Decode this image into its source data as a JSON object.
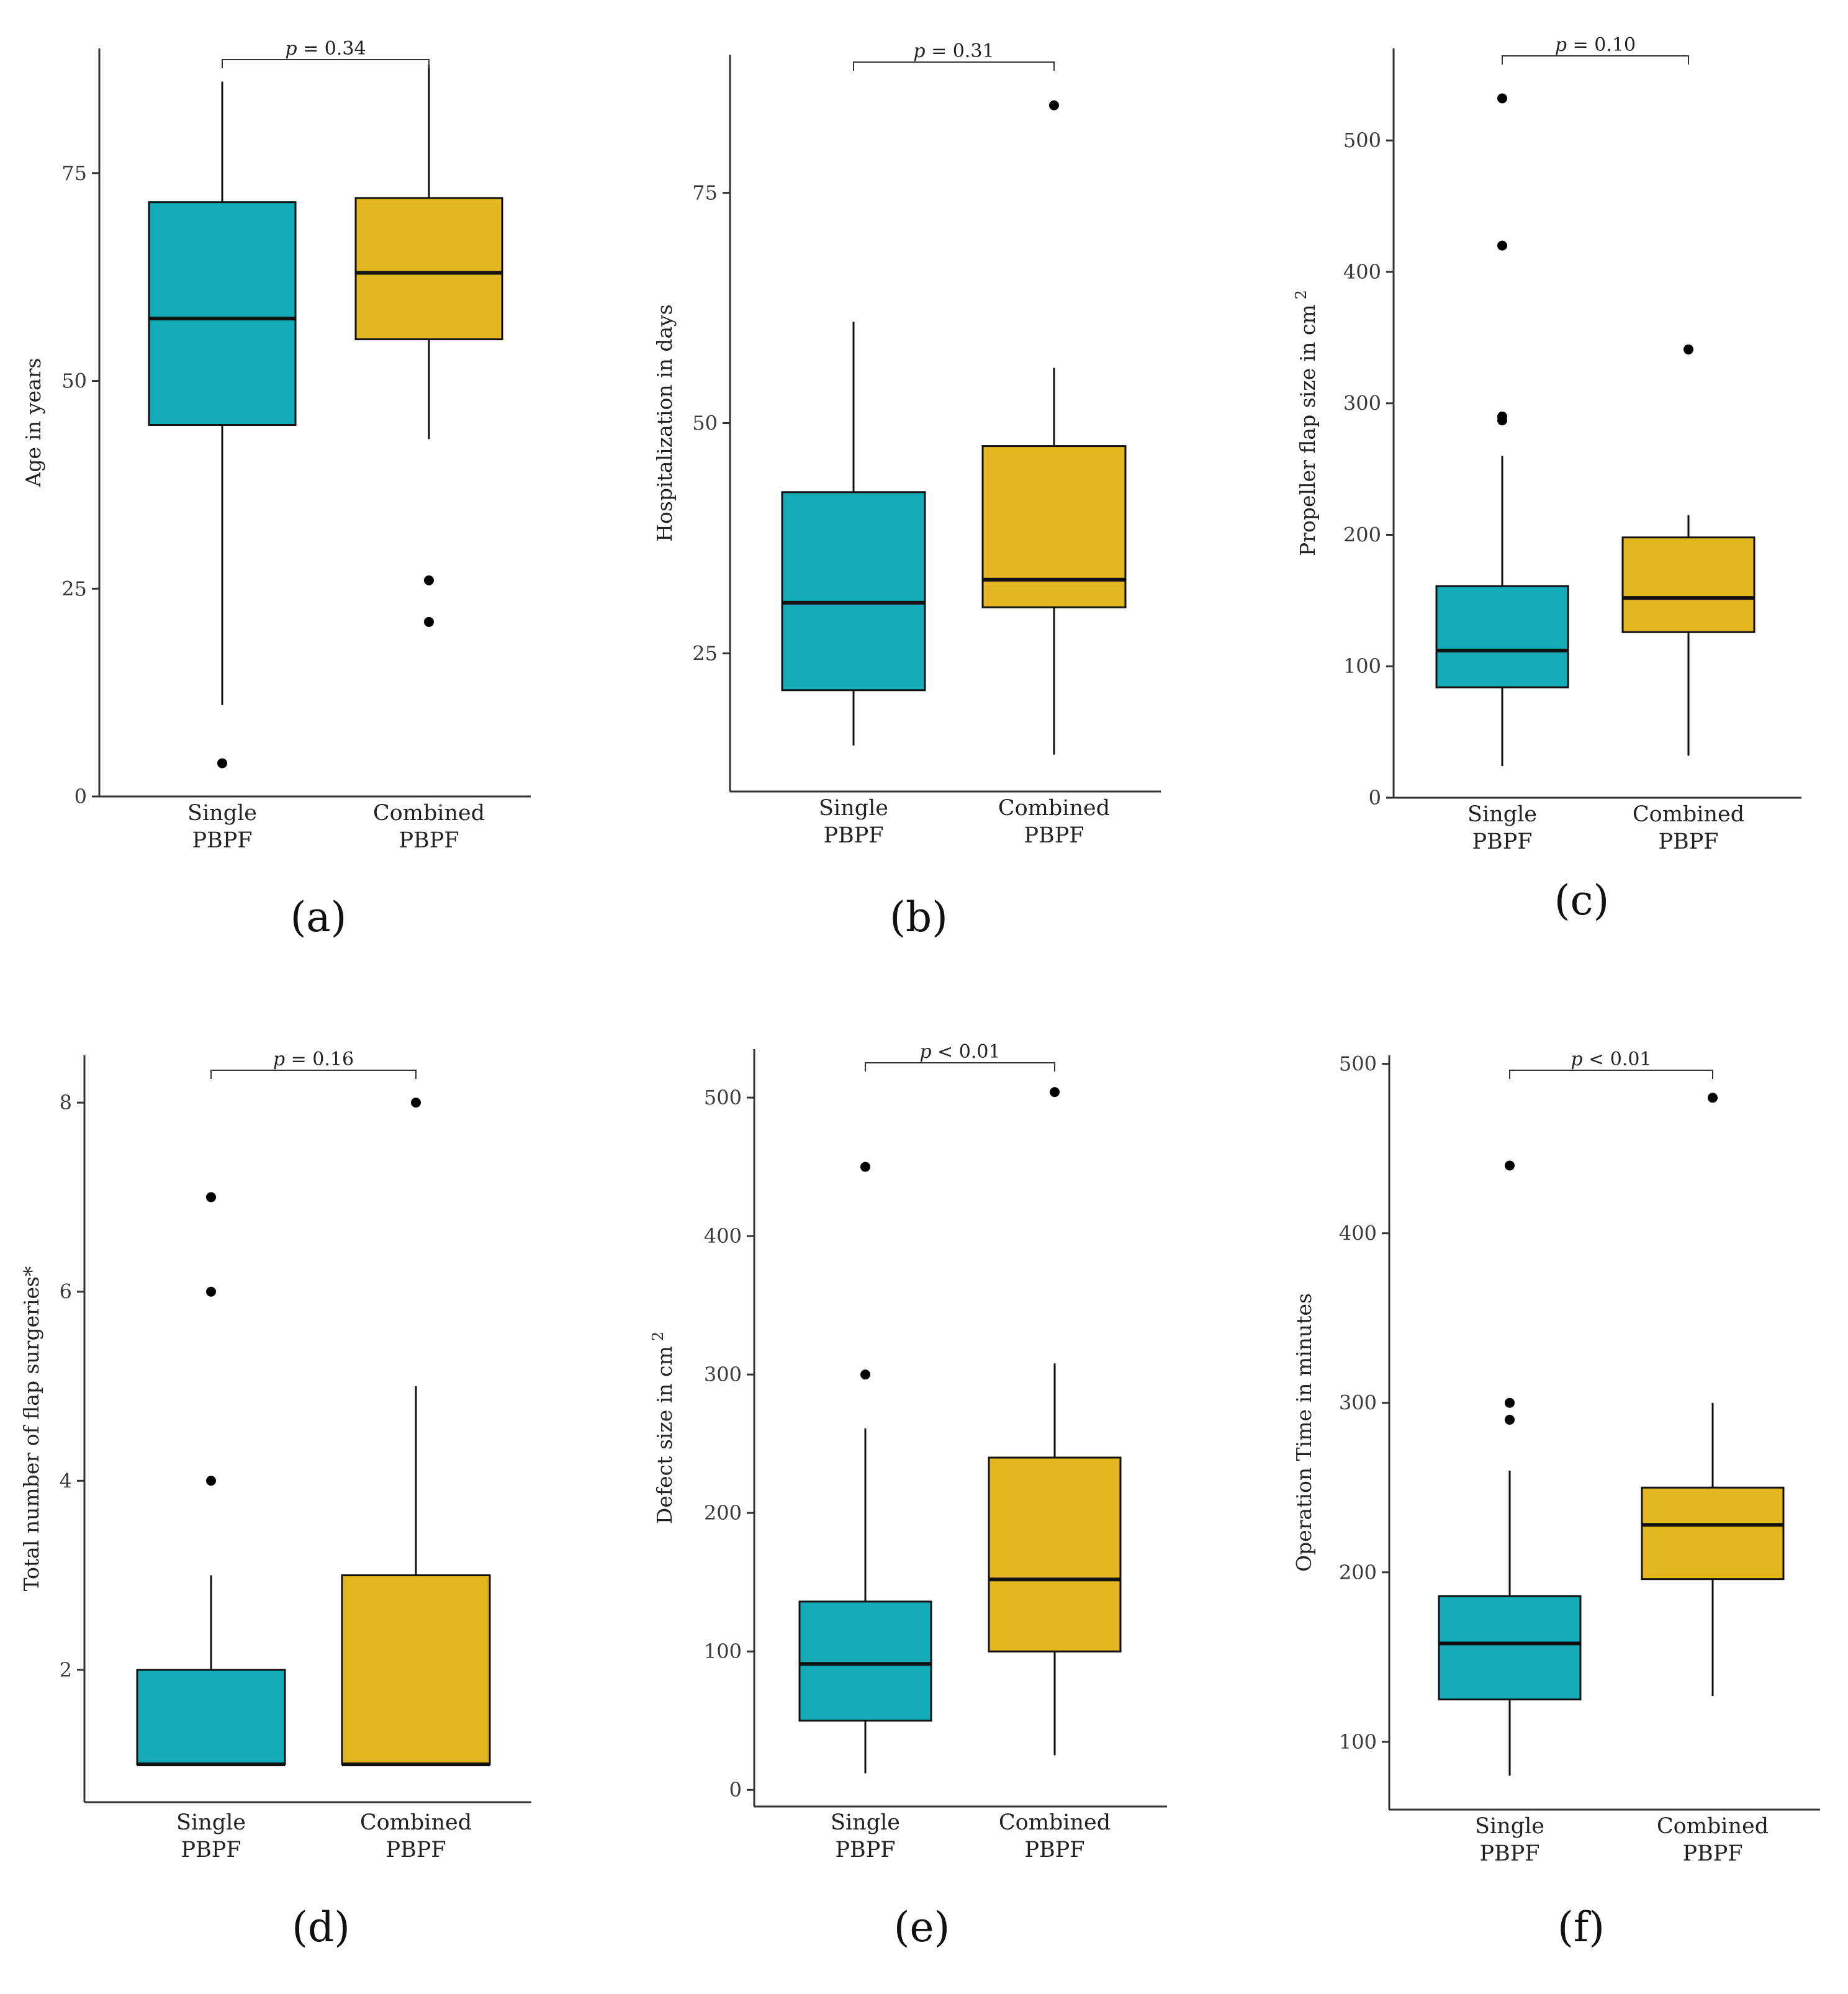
{
  "colors": {
    "single": "#13acb8",
    "combined": "#e3b620",
    "axis": "#333333"
  },
  "chart_data": [
    {
      "type": "boxplot",
      "panel_label": "(a)",
      "ylabel": "Age in years",
      "ylabel_sup": "",
      "ylim": [
        0,
        90
      ],
      "yticks": [
        0,
        25,
        50,
        75
      ],
      "p_label": "p = 0.34",
      "categories": [
        {
          "line1": "Single",
          "line2": "PBPF",
          "q1": 44.7,
          "median": 57.5,
          "q3": 71.5,
          "whisker_low": 11,
          "whisker_high": 86,
          "outliers": [
            4
          ],
          "color": "single"
        },
        {
          "line1": "Combined",
          "line2": "PBPF",
          "q1": 55,
          "median": 63,
          "q3": 72,
          "whisker_low": 43,
          "whisker_high": 88,
          "outliers": [
            26,
            21
          ],
          "color": "combined"
        }
      ]
    },
    {
      "type": "boxplot",
      "panel_label": "(b)",
      "ylabel": "Hospitalization in days",
      "ylabel_sup": "",
      "ylim": [
        10,
        90
      ],
      "yticks": [
        25,
        50,
        75
      ],
      "p_label": "p = 0.31",
      "categories": [
        {
          "line1": "Single",
          "line2": "PBPF",
          "q1": 21,
          "median": 30.5,
          "q3": 42.5,
          "whisker_low": 15,
          "whisker_high": 61,
          "outliers": [],
          "color": "single"
        },
        {
          "line1": "Combined",
          "line2": "PBPF",
          "q1": 30,
          "median": 33,
          "q3": 47.5,
          "whisker_low": 14,
          "whisker_high": 56,
          "outliers": [
            84.5
          ],
          "color": "combined"
        }
      ]
    },
    {
      "type": "boxplot",
      "panel_label": "(c)",
      "ylabel": "Propeller flap size in cm",
      "ylabel_sup": "2",
      "ylim": [
        0,
        570
      ],
      "yticks": [
        0,
        100,
        200,
        300,
        400,
        500
      ],
      "p_label": "p = 0.10",
      "categories": [
        {
          "line1": "Single",
          "line2": "PBPF",
          "q1": 84,
          "median": 112,
          "q3": 161,
          "whisker_low": 24,
          "whisker_high": 260,
          "outliers": [
            532,
            420,
            290,
            287
          ],
          "color": "single"
        },
        {
          "line1": "Combined",
          "line2": "PBPF",
          "q1": 126,
          "median": 152,
          "q3": 198,
          "whisker_low": 32,
          "whisker_high": 215,
          "outliers": [
            341
          ],
          "color": "combined"
        }
      ]
    },
    {
      "type": "boxplot",
      "panel_label": "(d)",
      "ylabel": "Total number of flap surgeries*",
      "ylabel_sup": "",
      "ylim": [
        0.6,
        8.5
      ],
      "yticks": [
        2,
        4,
        6,
        8
      ],
      "p_label": "p = 0.16",
      "categories": [
        {
          "line1": "Single",
          "line2": "PBPF",
          "q1": 1,
          "median": 1,
          "q3": 2,
          "whisker_low": 1,
          "whisker_high": 3,
          "outliers": [
            7,
            6,
            4
          ],
          "color": "single"
        },
        {
          "line1": "Combined",
          "line2": "PBPF",
          "q1": 1,
          "median": 1,
          "q3": 3,
          "whisker_low": 1,
          "whisker_high": 5,
          "outliers": [
            8
          ],
          "color": "combined"
        }
      ]
    },
    {
      "type": "boxplot",
      "panel_label": "(e)",
      "ylabel": "Defect size in cm",
      "ylabel_sup": "2",
      "ylim": [
        -12,
        535
      ],
      "yticks": [
        0,
        100,
        200,
        300,
        400,
        500
      ],
      "p_label": "p < 0.01",
      "categories": [
        {
          "line1": "Single",
          "line2": "PBPF",
          "q1": 50,
          "median": 91,
          "q3": 136,
          "whisker_low": 12,
          "whisker_high": 261,
          "outliers": [
            450,
            300
          ],
          "color": "single"
        },
        {
          "line1": "Combined",
          "line2": "PBPF",
          "q1": 100,
          "median": 152,
          "q3": 240,
          "whisker_low": 25,
          "whisker_high": 308,
          "outliers": [
            504
          ],
          "color": "combined"
        }
      ]
    },
    {
      "type": "boxplot",
      "panel_label": "(f)",
      "ylabel": "Operation Time in minutes",
      "ylabel_sup": "",
      "ylim": [
        60,
        505
      ],
      "yticks": [
        100,
        200,
        300,
        400,
        500
      ],
      "p_label": "p < 0.01",
      "categories": [
        {
          "line1": "Single",
          "line2": "PBPF",
          "q1": 125,
          "median": 158,
          "q3": 186,
          "whisker_low": 80,
          "whisker_high": 260,
          "outliers": [
            440,
            300,
            290
          ],
          "color": "single"
        },
        {
          "line1": "Combined",
          "line2": "PBPF",
          "q1": 196,
          "median": 228,
          "q3": 250,
          "whisker_low": 127,
          "whisker_high": 300,
          "outliers": [
            480
          ],
          "color": "combined"
        }
      ]
    }
  ]
}
